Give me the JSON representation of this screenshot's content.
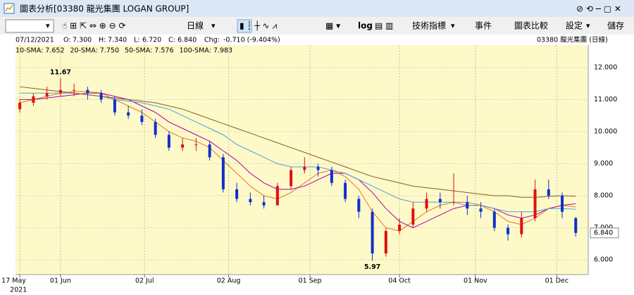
{
  "window_title": "圖表分析[03380 龍光集團 LOGAN GROUP]",
  "toolbar": {
    "period": "日線",
    "log": "log",
    "indicators": "技術指標",
    "events": "事件",
    "compare": "圖表比較",
    "settings": "設定",
    "save": "儲存"
  },
  "info": {
    "date": "07/12/2021",
    "open_label": "O:",
    "open": "7.300",
    "high_label": "H:",
    "high": "7.340",
    "low_label": "L:",
    "low": "6.720",
    "close_label": "C:",
    "close": "6.840",
    "chg_label": "Chg:",
    "chg": "-0.710 (-9.404%)",
    "instrument": "03380   龍光集團 (日線)"
  },
  "chart_data": {
    "type": "candlestick",
    "x": [
      0,
      5,
      10,
      15,
      20,
      25,
      30,
      35,
      40,
      45,
      50,
      55,
      60,
      65,
      70,
      75,
      80,
      85,
      90,
      95,
      100,
      105,
      110,
      115,
      120,
      125,
      130,
      135,
      140,
      145,
      150,
      155,
      160,
      165,
      170,
      175,
      180,
      185,
      190,
      195,
      200,
      205
    ],
    "open": [
      10.7,
      10.9,
      11.1,
      11.2,
      11.3,
      11.3,
      11.2,
      11.0,
      10.6,
      10.5,
      10.3,
      9.9,
      9.5,
      9.6,
      9.6,
      9.2,
      8.2,
      7.9,
      7.8,
      7.7,
      8.3,
      8.8,
      8.9,
      8.8,
      8.4,
      7.9,
      7.5,
      6.2,
      6.9,
      7.1,
      7.6,
      7.9,
      7.8,
      7.8,
      7.6,
      7.5,
      7.0,
      6.8,
      7.3,
      8.2,
      8.0,
      7.3
    ],
    "high": [
      11.0,
      11.2,
      11.4,
      11.67,
      11.5,
      11.4,
      11.3,
      11.1,
      10.8,
      10.7,
      10.4,
      10.0,
      9.8,
      9.8,
      9.7,
      9.3,
      8.4,
      8.1,
      8.0,
      8.4,
      8.9,
      9.2,
      9.0,
      8.9,
      8.5,
      8.0,
      7.6,
      7.0,
      7.3,
      7.8,
      8.1,
      8.1,
      8.7,
      8.0,
      7.8,
      7.6,
      7.1,
      7.5,
      8.5,
      8.5,
      8.1,
      7.34
    ],
    "low": [
      10.6,
      10.8,
      11.0,
      11.1,
      11.1,
      11.0,
      10.9,
      10.5,
      10.4,
      10.2,
      9.8,
      9.4,
      9.4,
      9.4,
      9.1,
      8.1,
      7.8,
      7.7,
      7.6,
      7.7,
      8.2,
      8.7,
      8.6,
      8.3,
      7.8,
      7.3,
      5.97,
      6.1,
      6.8,
      7.0,
      7.5,
      7.6,
      7.7,
      7.4,
      7.3,
      6.9,
      6.6,
      6.7,
      7.2,
      7.9,
      7.3,
      6.72
    ],
    "close": [
      10.9,
      11.1,
      11.2,
      11.3,
      11.3,
      11.2,
      11.0,
      10.6,
      10.5,
      10.3,
      9.9,
      9.5,
      9.6,
      9.6,
      9.2,
      8.2,
      7.9,
      7.8,
      7.7,
      8.3,
      8.8,
      8.9,
      8.8,
      8.4,
      7.9,
      7.5,
      6.2,
      6.9,
      7.1,
      7.6,
      7.9,
      7.8,
      7.8,
      7.6,
      7.5,
      7.0,
      6.8,
      7.3,
      8.2,
      8.0,
      7.5,
      6.84
    ],
    "up_color": "#e01010",
    "down_color": "#1030c8",
    "series": [
      {
        "name": "10-SMA: 7.652",
        "color": "#e8772e",
        "values": [
          10.9,
          11.0,
          11.1,
          11.2,
          11.25,
          11.25,
          11.2,
          11.0,
          10.8,
          10.6,
          10.3,
          10.0,
          9.8,
          9.7,
          9.5,
          9.1,
          8.7,
          8.3,
          8.0,
          7.9,
          8.1,
          8.4,
          8.7,
          8.8,
          8.6,
          8.2,
          7.5,
          7.0,
          6.9,
          7.2,
          7.5,
          7.7,
          7.8,
          7.8,
          7.7,
          7.5,
          7.2,
          7.1,
          7.3,
          7.6,
          7.7,
          7.652
        ]
      },
      {
        "name": "20-SMA: 7.750",
        "color": "#b000b0",
        "values": [
          11.0,
          11.0,
          11.05,
          11.1,
          11.15,
          11.2,
          11.2,
          11.1,
          11.0,
          10.8,
          10.6,
          10.3,
          10.1,
          9.9,
          9.7,
          9.4,
          9.1,
          8.7,
          8.4,
          8.2,
          8.2,
          8.3,
          8.5,
          8.7,
          8.7,
          8.5,
          8.1,
          7.6,
          7.2,
          7.0,
          7.2,
          7.4,
          7.6,
          7.7,
          7.7,
          7.6,
          7.4,
          7.3,
          7.4,
          7.6,
          7.7,
          7.75
        ]
      },
      {
        "name": "50-SMA: 7.576",
        "color": "#4aa3df",
        "values": [
          11.2,
          11.2,
          11.2,
          11.2,
          11.2,
          11.15,
          11.1,
          11.0,
          10.95,
          10.9,
          10.8,
          10.7,
          10.5,
          10.3,
          10.1,
          9.9,
          9.6,
          9.4,
          9.2,
          9.0,
          8.9,
          8.9,
          8.9,
          8.8,
          8.7,
          8.5,
          8.3,
          8.1,
          7.9,
          7.8,
          7.8,
          7.8,
          7.8,
          7.7,
          7.7,
          7.6,
          7.5,
          7.5,
          7.5,
          7.6,
          7.6,
          7.576
        ]
      },
      {
        "name": "100-SMA: 7.983",
        "color": "#8b5a2b",
        "values": [
          11.4,
          11.35,
          11.3,
          11.25,
          11.2,
          11.15,
          11.1,
          11.05,
          11.0,
          10.95,
          10.9,
          10.8,
          10.7,
          10.55,
          10.4,
          10.25,
          10.1,
          9.95,
          9.8,
          9.65,
          9.5,
          9.35,
          9.2,
          9.05,
          8.9,
          8.75,
          8.6,
          8.5,
          8.4,
          8.3,
          8.25,
          8.2,
          8.15,
          8.1,
          8.05,
          8.0,
          8.0,
          7.95,
          7.95,
          7.98,
          8.0,
          7.983
        ]
      }
    ],
    "annotations": [
      {
        "text": "11.67",
        "x": 15,
        "y": 11.67
      },
      {
        "text": "5.97",
        "x": 130,
        "y": 5.97
      }
    ],
    "last_price": {
      "value": 6.84,
      "label": "6.840"
    },
    "xlim": [
      -1.6,
      209.6
    ],
    "ylim": [
      5.54,
      12.7
    ],
    "xticks": [
      {
        "value": 0,
        "label": "17 May"
      },
      {
        "value": 15,
        "label": "01 Jun"
      },
      {
        "value": 46,
        "label": "02 Jul"
      },
      {
        "value": 77,
        "label": "02 Aug"
      },
      {
        "value": 107,
        "label": "01 Sep"
      },
      {
        "value": 140,
        "label": "04 Oct"
      },
      {
        "value": 168,
        "label": "01 Nov"
      },
      {
        "value": 198,
        "label": "01 Dec"
      }
    ],
    "year_label": "2021",
    "yticks": [
      {
        "value": 6,
        "label": "6.000"
      },
      {
        "value": 7,
        "label": "7.000"
      },
      {
        "value": 8,
        "label": "8.000"
      },
      {
        "value": 9,
        "label": "9.000"
      },
      {
        "value": 10,
        "label": "10.000"
      },
      {
        "value": 11,
        "label": "11.000"
      },
      {
        "value": 12,
        "label": "12.000"
      }
    ],
    "grid": true,
    "background": "#fdf9c8"
  }
}
